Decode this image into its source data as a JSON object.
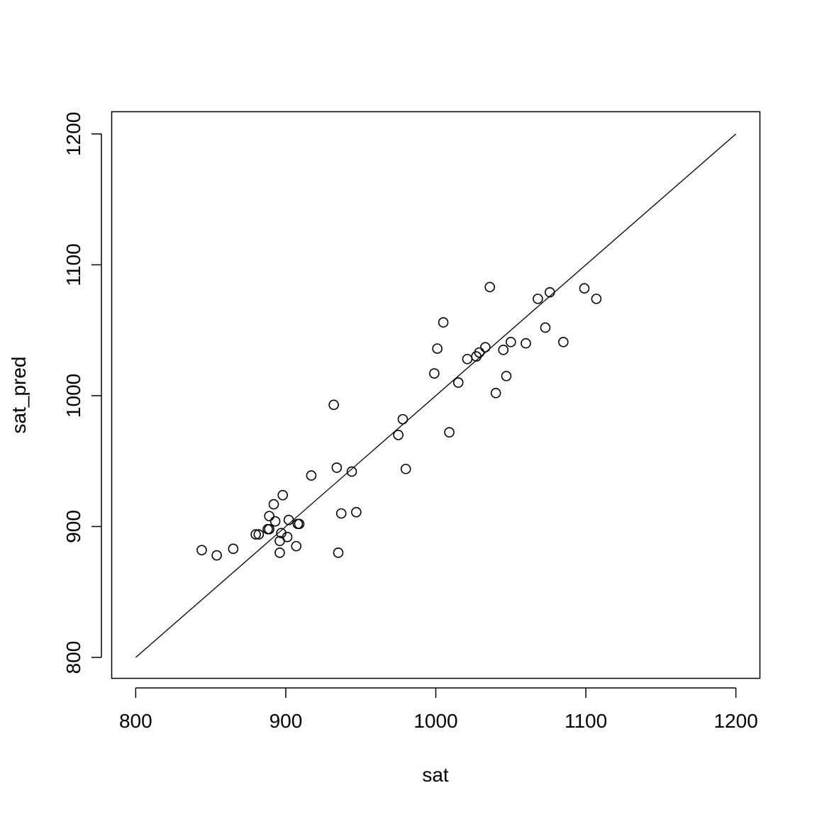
{
  "chart_data": {
    "type": "scatter",
    "xlabel": "sat",
    "ylabel": "sat_pred",
    "xlim": [
      784,
      1216
    ],
    "ylim": [
      784,
      1217
    ],
    "x_ticks": [
      "800",
      "900",
      "1000",
      "1100",
      "1200"
    ],
    "y_ticks": [
      "800",
      "900",
      "1000",
      "1100",
      "1200"
    ],
    "reference_line": {
      "from": [
        800,
        800
      ],
      "to": [
        1200,
        1200
      ]
    },
    "marker": "open-circle",
    "color": "#000000",
    "points": [
      [
        844,
        882
      ],
      [
        854,
        878
      ],
      [
        865,
        883
      ],
      [
        880,
        894
      ],
      [
        882,
        894
      ],
      [
        888,
        898
      ],
      [
        889,
        898
      ],
      [
        889,
        908
      ],
      [
        892,
        917
      ],
      [
        893,
        904
      ],
      [
        896,
        880
      ],
      [
        896,
        889
      ],
      [
        897,
        895
      ],
      [
        898,
        924
      ],
      [
        901,
        892
      ],
      [
        902,
        905
      ],
      [
        907,
        885
      ],
      [
        908,
        902
      ],
      [
        909,
        902
      ],
      [
        917,
        939
      ],
      [
        932,
        993
      ],
      [
        934,
        945
      ],
      [
        935,
        880
      ],
      [
        937,
        910
      ],
      [
        944,
        942
      ],
      [
        947,
        911
      ],
      [
        975,
        970
      ],
      [
        978,
        982
      ],
      [
        980,
        944
      ],
      [
        999,
        1017
      ],
      [
        1001,
        1036
      ],
      [
        1005,
        1056
      ],
      [
        1009,
        972
      ],
      [
        1015,
        1010
      ],
      [
        1021,
        1028
      ],
      [
        1027,
        1030
      ],
      [
        1029,
        1033
      ],
      [
        1033,
        1037
      ],
      [
        1036,
        1083
      ],
      [
        1040,
        1002
      ],
      [
        1045,
        1035
      ],
      [
        1047,
        1015
      ],
      [
        1050,
        1041
      ],
      [
        1060,
        1040
      ],
      [
        1068,
        1074
      ],
      [
        1073,
        1052
      ],
      [
        1076,
        1079
      ],
      [
        1085,
        1041
      ],
      [
        1099,
        1082
      ],
      [
        1107,
        1074
      ]
    ]
  }
}
